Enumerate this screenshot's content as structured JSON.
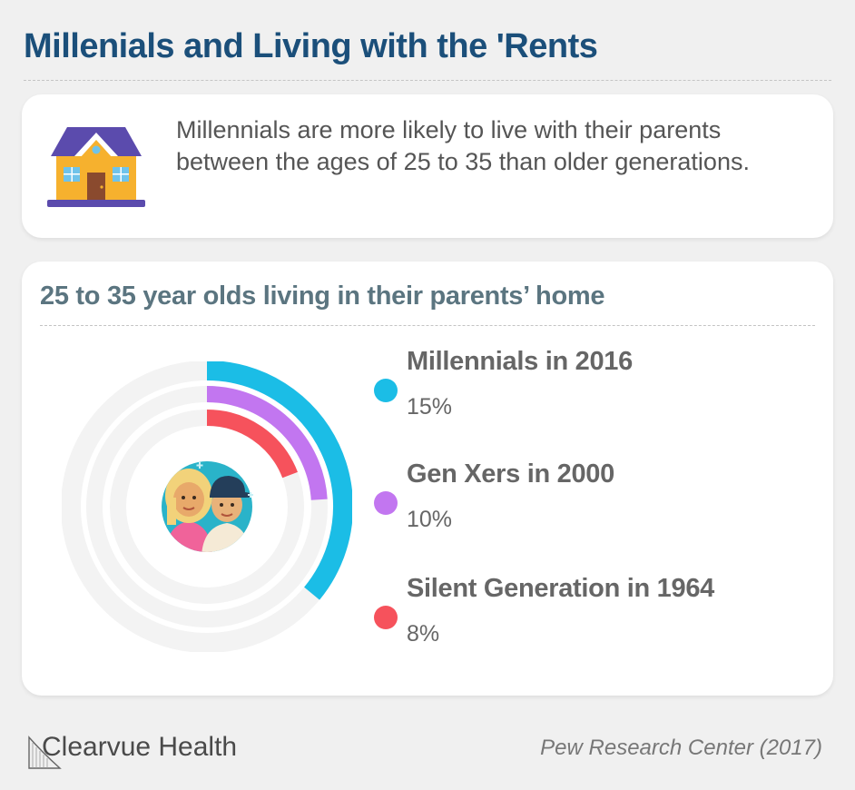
{
  "title": "Millenials and Living with the 'Rents",
  "intro": {
    "icon": "house-icon",
    "text": "Millennials are more likely to live with their parents between the ages of 25 to 35 than older generations."
  },
  "colors": {
    "title": "#1b4f7a",
    "millennials": "#1bbde6",
    "genx": "#c276f0",
    "silent": "#f6525c",
    "track": "#f3f3f3"
  },
  "chart_data": {
    "type": "pie",
    "variant": "radial-bar",
    "title": "25 to 35 year olds living in their parents’ home",
    "scale_max": 100,
    "series": [
      {
        "name": "Millennials in 2016",
        "value": 15,
        "label": "15%",
        "color": "#1bbde6"
      },
      {
        "name": "Gen Xers in 2000",
        "value": 10,
        "label": "10%",
        "color": "#c276f0"
      },
      {
        "name": "Silent Generation in 1964",
        "value": 8,
        "label": "8%",
        "color": "#f6525c"
      }
    ],
    "legend_position": "right",
    "center_icon": "young-couple-icon"
  },
  "footer": {
    "brand": "Clearvue Health",
    "source": "Pew Research Center (2017)"
  }
}
